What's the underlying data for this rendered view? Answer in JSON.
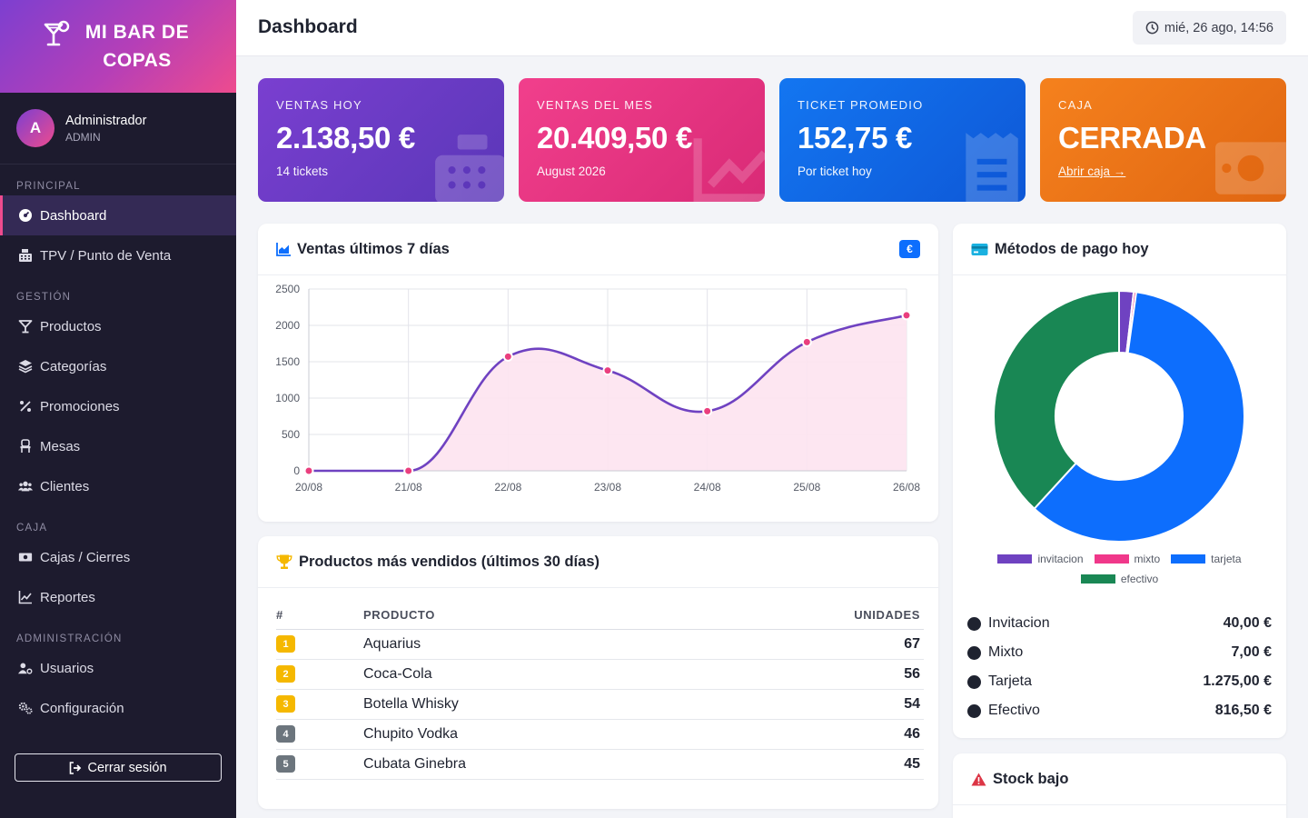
{
  "brand": {
    "name": "MI BAR DE COPAS"
  },
  "user": {
    "initial": "A",
    "name": "Administrador",
    "role": "ADMIN"
  },
  "sidebar": {
    "sections": {
      "principal": "PRINCIPAL",
      "gestion": "GESTIÓN",
      "caja": "CAJA",
      "administracion": "ADMINISTRACIÓN"
    },
    "items": {
      "dashboard": "Dashboard",
      "tpv": "TPV / Punto de Venta",
      "productos": "Productos",
      "categorias": "Categorías",
      "promociones": "Promociones",
      "mesas": "Mesas",
      "clientes": "Clientes",
      "cajas": "Cajas / Cierres",
      "reportes": "Reportes",
      "usuarios": "Usuarios",
      "configuracion": "Configuración"
    },
    "logout": "Cerrar sesión"
  },
  "header": {
    "title": "Dashboard",
    "datetime": "mié, 26 ago, 14:56"
  },
  "stats": [
    {
      "label": "VENTAS HOY",
      "value": "2.138,50 €",
      "sub": "14 tickets",
      "icon": "cash-register-icon"
    },
    {
      "label": "VENTAS DEL MES",
      "value": "20.409,50 €",
      "sub": "August 2026",
      "icon": "chart-line-icon"
    },
    {
      "label": "TICKET PROMEDIO",
      "value": "152,75 €",
      "sub": "Por ticket hoy",
      "icon": "receipt-icon"
    },
    {
      "label": "CAJA",
      "value": "CERRADA",
      "sub": "Abrir caja →",
      "icon": "money-bill-icon"
    }
  ],
  "colors": {
    "invitacion": "#6f42c1",
    "mixto": "#f0388a",
    "tarjeta": "#0d6efd",
    "efectivo": "#198754",
    "line": "#6f42c1",
    "fill": "#fde3ef",
    "point": "#ea3f7e"
  },
  "sales_card": {
    "title": "Ventas últimos 7 días",
    "badge": "€"
  },
  "products_card": {
    "title": "Productos más vendidos (últimos 30 días)",
    "headers": {
      "rank": "#",
      "product": "PRODUCTO",
      "units": "UNIDADES"
    },
    "rows": [
      {
        "rank": "1",
        "name": "Aquarius",
        "units": "67",
        "color": "#f5b800"
      },
      {
        "rank": "2",
        "name": "Coca-Cola",
        "units": "56",
        "color": "#f5b800"
      },
      {
        "rank": "3",
        "name": "Botella Whisky",
        "units": "54",
        "color": "#f5b800"
      },
      {
        "rank": "4",
        "name": "Chupito Vodka",
        "units": "46",
        "color": "#6c757d"
      },
      {
        "rank": "5",
        "name": "Cubata Ginebra",
        "units": "45",
        "color": "#6c757d"
      }
    ]
  },
  "payments_card": {
    "title": "Métodos de pago hoy",
    "legend": [
      "invitacion",
      "mixto",
      "tarjeta",
      "efectivo"
    ],
    "list": [
      {
        "name": "Invitacion",
        "amount": "40,00 €"
      },
      {
        "name": "Mixto",
        "amount": "7,00 €"
      },
      {
        "name": "Tarjeta",
        "amount": "1.275,00 €"
      },
      {
        "name": "Efectivo",
        "amount": "816,50 €"
      }
    ]
  },
  "stock_card": {
    "title": "Stock bajo"
  },
  "chart_data": [
    {
      "type": "area",
      "title": "",
      "x": [
        "20/08",
        "21/08",
        "22/08",
        "23/08",
        "24/08",
        "25/08",
        "26/08"
      ],
      "series": [
        {
          "values": [
            0,
            0,
            1570,
            1380,
            820,
            1770,
            2138.5
          ]
        }
      ],
      "ylim": [
        0,
        2500
      ],
      "yticks": [
        0,
        500,
        1000,
        1500,
        2000,
        2500
      ],
      "grid": true
    },
    {
      "type": "pie",
      "variant": "doughnut",
      "categories": [
        "invitacion",
        "mixto",
        "tarjeta",
        "efectivo"
      ],
      "values": [
        40,
        7,
        1275,
        816.5
      ],
      "legend": "bottom"
    }
  ]
}
